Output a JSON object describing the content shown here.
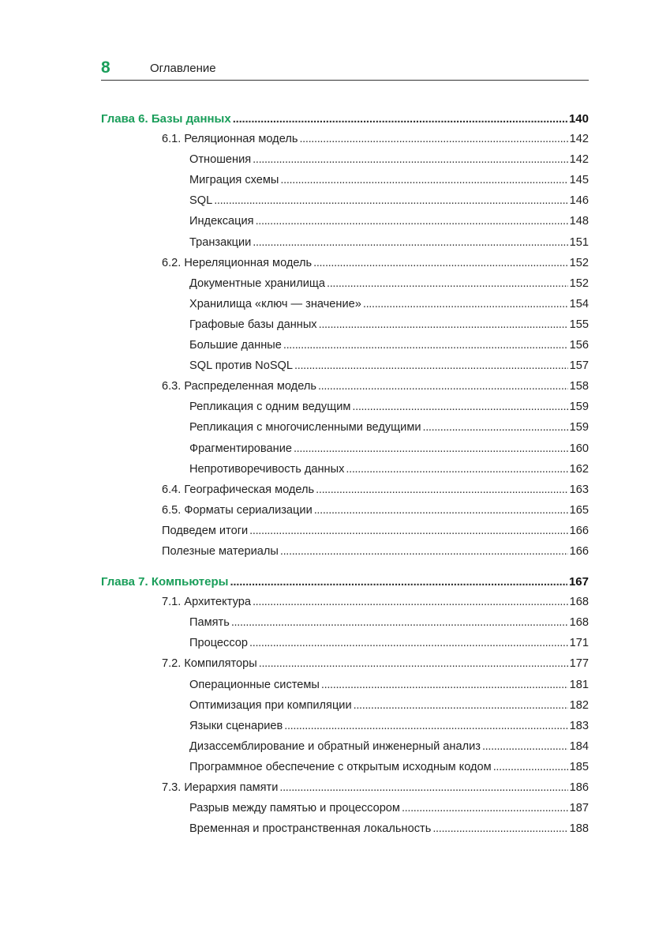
{
  "header": {
    "page_number": "8",
    "title": "Оглавление"
  },
  "accent_color": "#1a9e5a",
  "toc": [
    {
      "level": 0,
      "title": "Глава 6. Базы данных",
      "page": "140"
    },
    {
      "level": 1,
      "title": "6.1. Реляционная модель",
      "page": "142"
    },
    {
      "level": 2,
      "title": "Отношения",
      "page": "142"
    },
    {
      "level": 2,
      "title": "Миграция схемы",
      "page": "145"
    },
    {
      "level": 2,
      "title": "SQL",
      "page": "146"
    },
    {
      "level": 2,
      "title": "Индексация",
      "page": "148"
    },
    {
      "level": 2,
      "title": "Транзакции",
      "page": "151"
    },
    {
      "level": 1,
      "title": "6.2. Нереляционная модель",
      "page": "152"
    },
    {
      "level": 2,
      "title": "Документные хранилища",
      "page": "152"
    },
    {
      "level": 2,
      "title": "Хранилища «ключ — значение»",
      "page": "154"
    },
    {
      "level": 2,
      "title": "Графовые базы данных",
      "page": "155"
    },
    {
      "level": 2,
      "title": "Большие данные",
      "page": "156"
    },
    {
      "level": 2,
      "title": "SQL против NoSQL",
      "page": "157"
    },
    {
      "level": 1,
      "title": "6.3. Распределенная модель",
      "page": "158"
    },
    {
      "level": 2,
      "title": "Репликация с одним ведущим",
      "page": "159"
    },
    {
      "level": 2,
      "title": "Репликация с многочисленными ведущими",
      "page": "159"
    },
    {
      "level": 2,
      "title": "Фрагментирование",
      "page": "160"
    },
    {
      "level": 2,
      "title": "Непротиворечивость данных",
      "page": "162"
    },
    {
      "level": 1,
      "title": "6.4. Географическая модель",
      "page": "163"
    },
    {
      "level": 1,
      "title": "6.5. Форматы сериализации",
      "page": "165"
    },
    {
      "level": 1,
      "title": "Подведем итоги",
      "page": "166"
    },
    {
      "level": 1,
      "title": "Полезные материалы",
      "page": "166"
    },
    {
      "level": 0,
      "title": "Глава 7. Компьютеры",
      "page": "167"
    },
    {
      "level": 1,
      "title": "7.1. Архитектура",
      "page": "168"
    },
    {
      "level": 2,
      "title": "Память",
      "page": "168"
    },
    {
      "level": 2,
      "title": "Процессор",
      "page": "171"
    },
    {
      "level": 1,
      "title": "7.2. Компиляторы",
      "page": "177"
    },
    {
      "level": 2,
      "title": "Операционные системы",
      "page": "181"
    },
    {
      "level": 2,
      "title": "Оптимизация при компиляции",
      "page": "182"
    },
    {
      "level": 2,
      "title": "Языки сценариев",
      "page": "183"
    },
    {
      "level": 2,
      "title": "Дизассемблирование и обратный инженерный анализ",
      "page": "184"
    },
    {
      "level": 2,
      "title": "Программное обеспечение с открытым исходным кодом",
      "page": "185"
    },
    {
      "level": 1,
      "title": "7.3. Иерархия памяти",
      "page": "186"
    },
    {
      "level": 2,
      "title": "Разрыв между памятью и процессором",
      "page": "187"
    },
    {
      "level": 2,
      "title": "Временная и пространственная локальность",
      "page": "188"
    }
  ]
}
